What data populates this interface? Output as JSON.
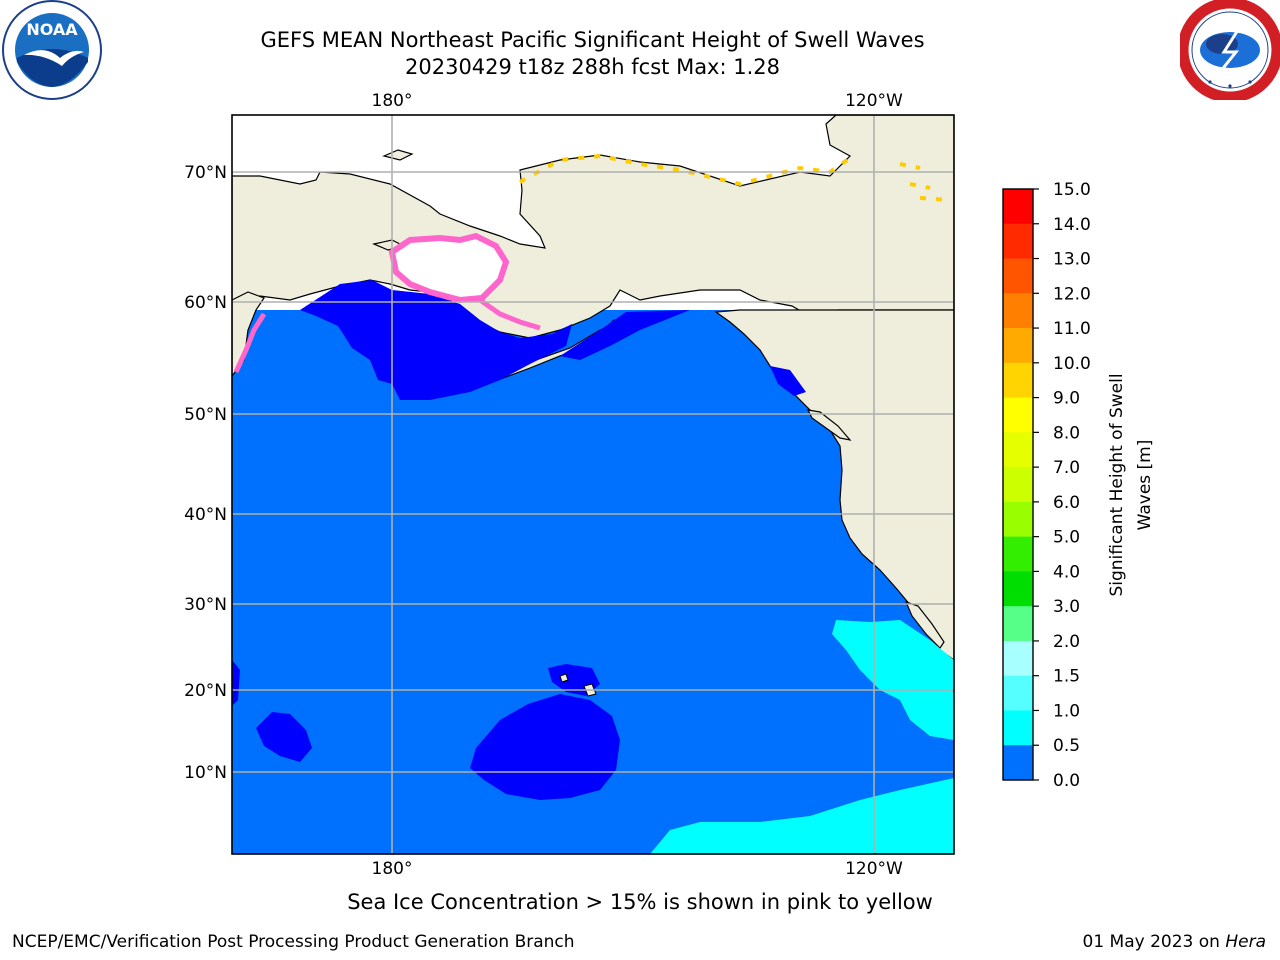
{
  "title": {
    "line1": "GEFS MEAN Northeast Pacific Significant Height of Swell Waves",
    "line2": "20230429 t18z 288h fcst   Max: 1.28"
  },
  "logos": {
    "left": {
      "icon": "noaa-logo",
      "text": "NOAA"
    },
    "right": {
      "icon": "nws-logo"
    }
  },
  "map": {
    "lon_labels": [
      "180°",
      "120°W"
    ],
    "lat_labels": [
      "70°N",
      "60°N",
      "50°N",
      "40°N",
      "30°N",
      "20°N",
      "10°N"
    ],
    "colors": {
      "land": "#efeedd",
      "ocean_0_0.5": "#0000ff",
      "ocean_0.5_1.0": "#0070ff",
      "ocean_1.0_1.5": "#00ffff",
      "sea_ice": "#ff66cc",
      "grid": "#b0b0b0"
    }
  },
  "colorbar": {
    "label_line1": "Significant Height of Swell",
    "label_line2": "Waves [m]",
    "ticks": [
      "15.0",
      "14.0",
      "13.0",
      "12.0",
      "11.0",
      "10.0",
      "9.0",
      "8.0",
      "7.0",
      "6.0",
      "5.0",
      "4.0",
      "3.0",
      "2.0",
      "1.5",
      "1.0",
      "0.5",
      "0.0"
    ],
    "band_colors": [
      "#ff0000",
      "#ff2a00",
      "#ff5500",
      "#ff8000",
      "#ffaa00",
      "#ffd400",
      "#ffff00",
      "#e6ff00",
      "#ccff00",
      "#99ff00",
      "#33ee00",
      "#00dd00",
      "#55ff88",
      "#a8ffff",
      "#55ffff",
      "#00ffff",
      "#0070ff",
      "#0000ff"
    ]
  },
  "caption": "Sea Ice Concentration > 15% is shown in pink to yellow",
  "footer": {
    "left": "NCEP/EMC/Verification Post Processing Product Generation Branch",
    "right_prefix": "01 May 2023 on ",
    "right_italic": "Hera"
  }
}
